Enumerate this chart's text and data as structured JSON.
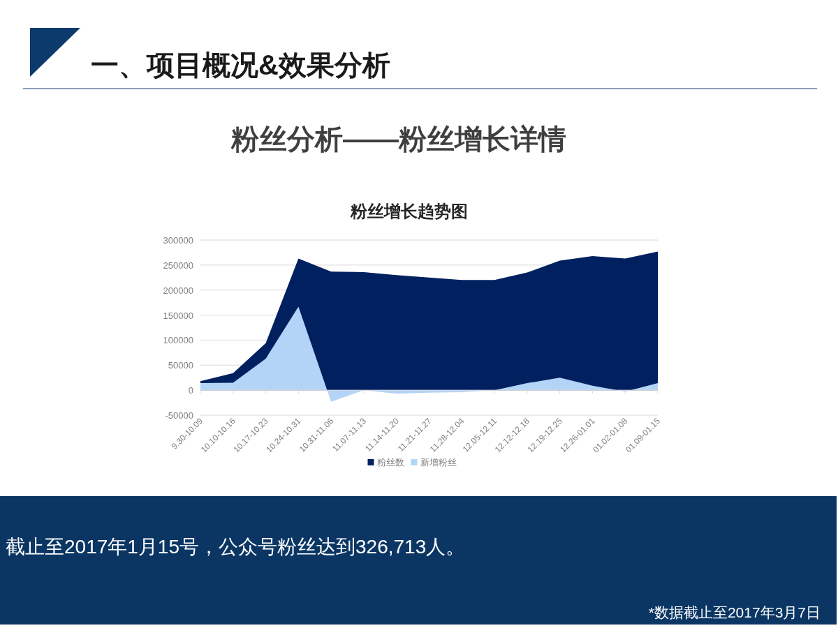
{
  "chart_data": {
    "type": "area",
    "title": "粉丝分析——粉丝增长详情",
    "subtitle": "粉丝增长趋势图",
    "categories": [
      "9.30-10.09",
      "10.10-10.16",
      "10.17-10.23",
      "10.24-10.31",
      "10.31-11.06",
      "11.07-11.13",
      "11.14-11.20",
      "11.21-11.27",
      "11.28-12.04",
      "12.05-12.11",
      "12.12-12.18",
      "12.19-12.25",
      "12.26-01.01",
      "01.02-01.08",
      "01.09-01.15"
    ],
    "series": [
      {
        "name": "粉丝数",
        "color": "#002060",
        "values": [
          18000,
          34000,
          94000,
          263000,
          237000,
          236000,
          230000,
          225000,
          220000,
          220000,
          235000,
          259000,
          268000,
          263000,
          277000
        ]
      },
      {
        "name": "新增粉丝",
        "color": "#b3d4f7",
        "values": [
          14000,
          15000,
          63000,
          167000,
          -23000,
          0,
          -7000,
          -5000,
          -4000,
          0,
          14000,
          25000,
          9000,
          -3000,
          14000
        ]
      }
    ],
    "ylim": [
      -50000,
      300000
    ],
    "yticks": [
      -50000,
      0,
      50000,
      100000,
      150000,
      200000,
      250000,
      300000
    ],
    "grid": "y",
    "legend": "bottom",
    "annotations": [
      "一、项目概况&效果分析",
      "截止至2017年1月15号，公众号粉丝达到326,713人。",
      "*数据截止至2017年3月7日"
    ]
  }
}
